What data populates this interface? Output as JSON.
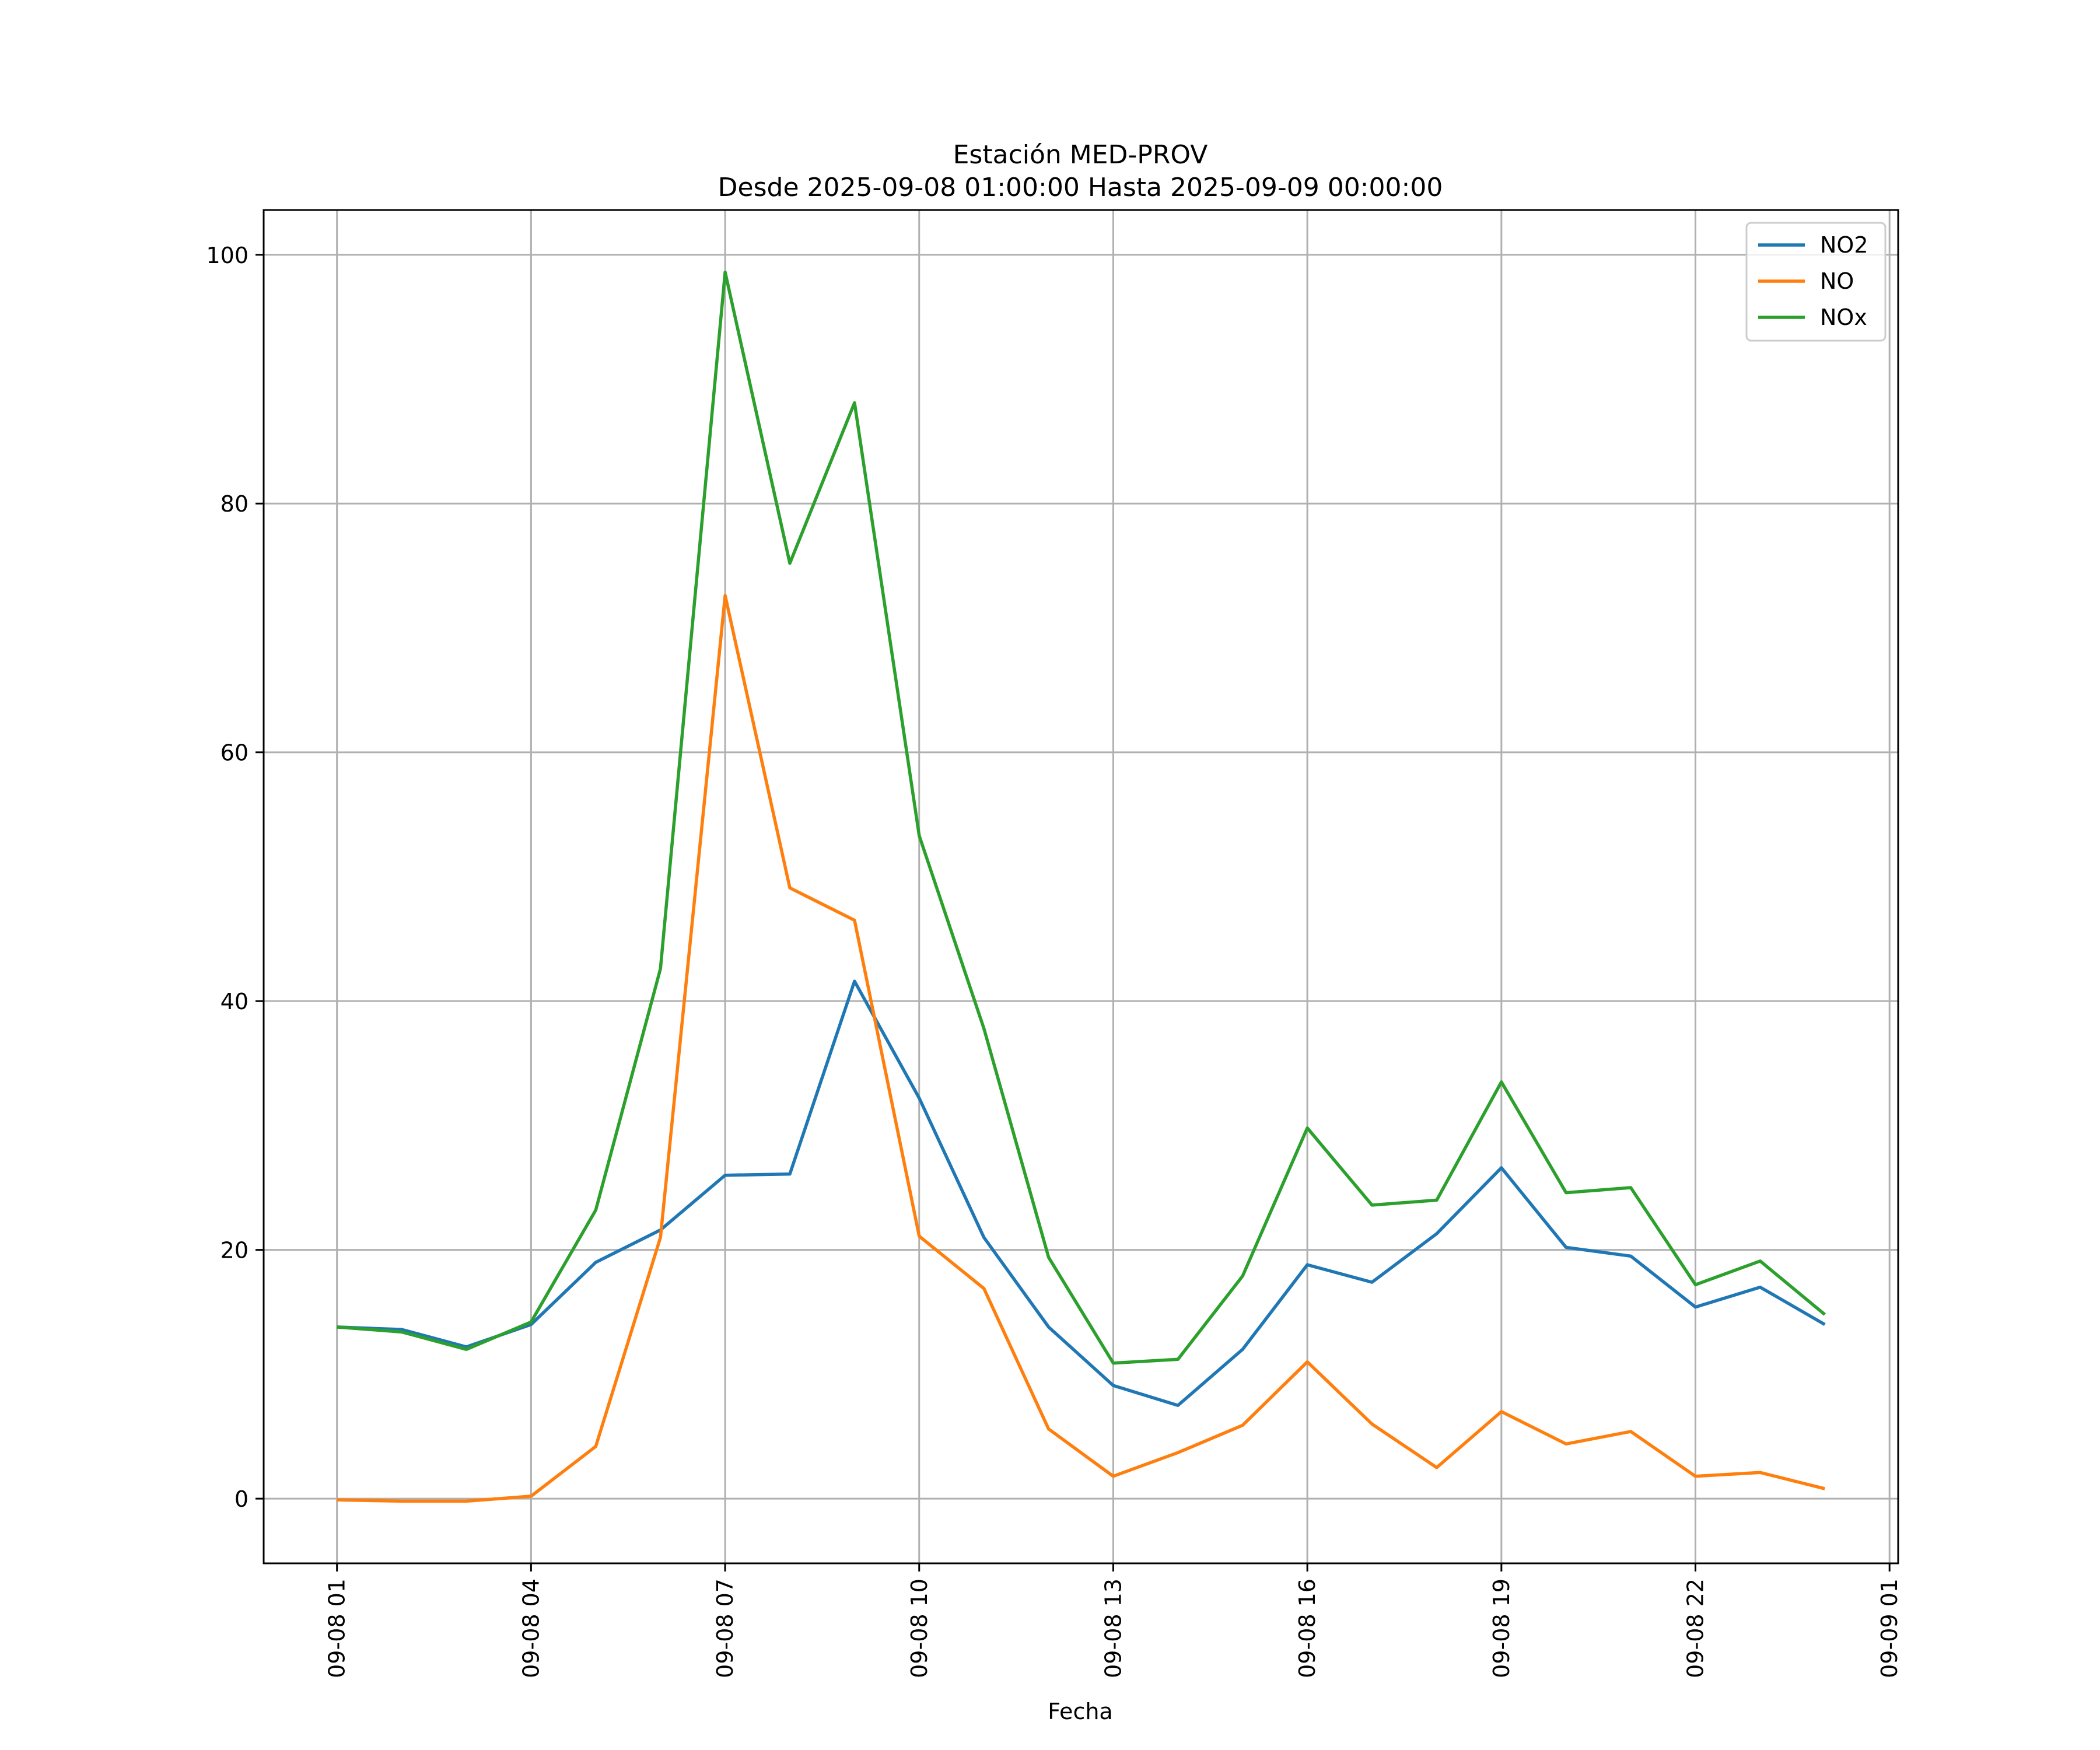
{
  "chart_data": {
    "type": "line",
    "title": "Estación MED-PROV",
    "subtitle": "Desde 2025-09-08 01:00:00 Hasta 2025-09-09 00:00:00",
    "xlabel": "Fecha",
    "ylabel": "",
    "x": [
      "2025-09-08 01:00",
      "2025-09-08 02:00",
      "2025-09-08 03:00",
      "2025-09-08 04:00",
      "2025-09-08 05:00",
      "2025-09-08 06:00",
      "2025-09-08 07:00",
      "2025-09-08 08:00",
      "2025-09-08 09:00",
      "2025-09-08 10:00",
      "2025-09-08 11:00",
      "2025-09-08 12:00",
      "2025-09-08 13:00",
      "2025-09-08 14:00",
      "2025-09-08 15:00",
      "2025-09-08 16:00",
      "2025-09-08 17:00",
      "2025-09-08 18:00",
      "2025-09-08 19:00",
      "2025-09-08 20:00",
      "2025-09-08 21:00",
      "2025-09-08 22:00",
      "2025-09-08 23:00",
      "2025-09-09 00:00"
    ],
    "xlim": [
      "2025-09-07 23:52",
      "2025-09-09 01:08"
    ],
    "ylim": [
      -5.2,
      103.6
    ],
    "x_ticks": [
      "09-08 01",
      "09-08 04",
      "09-08 07",
      "09-08 10",
      "09-08 13",
      "09-08 16",
      "09-08 19",
      "09-08 22",
      "09-09 01"
    ],
    "y_ticks": [
      0,
      20,
      40,
      60,
      80,
      100
    ],
    "grid": true,
    "legend_position": "top-right",
    "series": [
      {
        "name": "NO2",
        "color": "#1f77b4",
        "values": [
          13.8,
          13.6,
          12.2,
          14.0,
          19.0,
          21.6,
          26.0,
          26.1,
          41.6,
          32.2,
          21.0,
          13.8,
          9.1,
          7.5,
          12.0,
          18.8,
          17.4,
          21.3,
          26.6,
          20.2,
          19.5,
          15.4,
          17.0,
          14.0
        ]
      },
      {
        "name": "NO",
        "color": "#ff7f0e",
        "values": [
          -0.1,
          -0.2,
          -0.2,
          0.2,
          4.2,
          21.0,
          72.6,
          49.1,
          46.5,
          21.1,
          16.9,
          5.6,
          1.8,
          3.7,
          5.9,
          11.0,
          6.0,
          2.5,
          7.0,
          4.4,
          5.4,
          1.8,
          2.1,
          0.8
        ]
      },
      {
        "name": "NOx",
        "color": "#2ca02c",
        "values": [
          13.8,
          13.4,
          12.0,
          14.2,
          23.2,
          42.6,
          98.6,
          75.2,
          88.1,
          53.3,
          37.8,
          19.4,
          10.9,
          11.2,
          17.9,
          29.8,
          23.6,
          24.0,
          33.5,
          24.6,
          25.0,
          17.2,
          19.1,
          14.8
        ]
      }
    ]
  }
}
